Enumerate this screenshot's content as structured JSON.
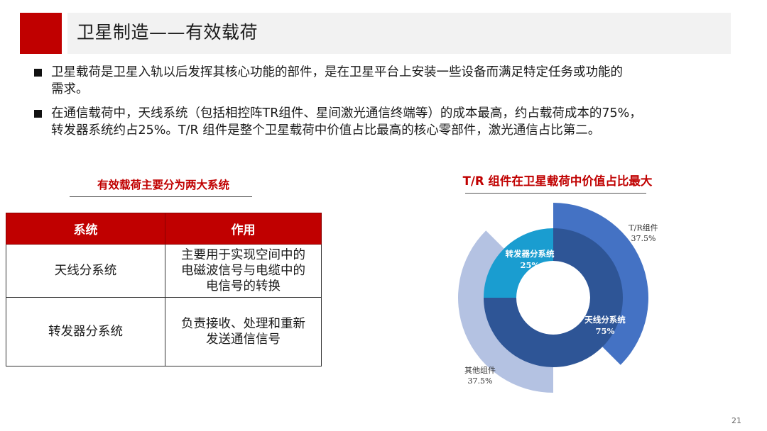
{
  "header": {
    "title": "卫星制造——有效载荷"
  },
  "bullets": [
    {
      "line1": "卫星载荷是卫星入轨以后发挥其核心功能的部件，是在卫星平台上安装一些设备而满足特定任务或功能的",
      "line2": "需求。"
    },
    {
      "line1": "在通信载荷中，天线系统（包括相控阵TR组件、星间激光通信终端等）的成本最高，约占载荷成本的75%，",
      "line2": "转发器系统约占25%。T/R 组件是整个卫星载荷中价值占比最高的核心零部件，激光通信占比第二。"
    }
  ],
  "table_section": {
    "title": "有效载荷主要分为两大系统",
    "headers": [
      "系统",
      "作用"
    ],
    "rows": [
      {
        "system": "天线分系统",
        "role_lines": [
          "主要用于实现空间中的",
          "电磁波信号与电缆中的",
          "电信号的转换"
        ]
      },
      {
        "system": "转发器分系统",
        "role_lines": [
          "负责接收、处理和重新",
          "发送通信信号"
        ]
      }
    ]
  },
  "chart_section": {
    "title": "T/R 组件在卫星载荷中价值占比最大"
  },
  "chart_data": {
    "type": "pie",
    "subtype": "nested-donut",
    "inner": [
      {
        "name": "天线分系统",
        "value": 75,
        "label": "75%",
        "color": "#2e5596"
      },
      {
        "name": "转发器分系统",
        "value": 25,
        "label": "25%",
        "color": "#1a9dd0"
      }
    ],
    "outer": [
      {
        "name": "T/R组件",
        "value": 37.5,
        "label": "37.5%",
        "color": "#4472c4"
      },
      {
        "name": "其他组件",
        "value": 37.5,
        "label": "37.5%",
        "color": "#b4c2e2"
      }
    ]
  },
  "footer": {
    "page_number": "21"
  }
}
